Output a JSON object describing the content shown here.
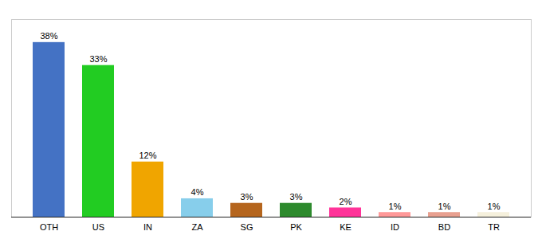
{
  "chart_data": {
    "type": "bar",
    "categories": [
      "OTH",
      "US",
      "IN",
      "ZA",
      "SG",
      "PK",
      "KE",
      "ID",
      "BD",
      "TR"
    ],
    "values": [
      38,
      33,
      12,
      4,
      3,
      3,
      2,
      1,
      1,
      1
    ],
    "value_labels": [
      "38%",
      "33%",
      "12%",
      "4%",
      "3%",
      "3%",
      "2%",
      "1%",
      "1%",
      "1%"
    ],
    "colors": [
      "#4472c4",
      "#22cc22",
      "#f0a500",
      "#87ceeb",
      "#b5651d",
      "#2d8a2d",
      "#ff3399",
      "#ff9999",
      "#e8a090",
      "#f5f0dc"
    ],
    "ylim": [
      0,
      43
    ],
    "data_labels": true,
    "tick_labels": "x",
    "grid": false
  }
}
